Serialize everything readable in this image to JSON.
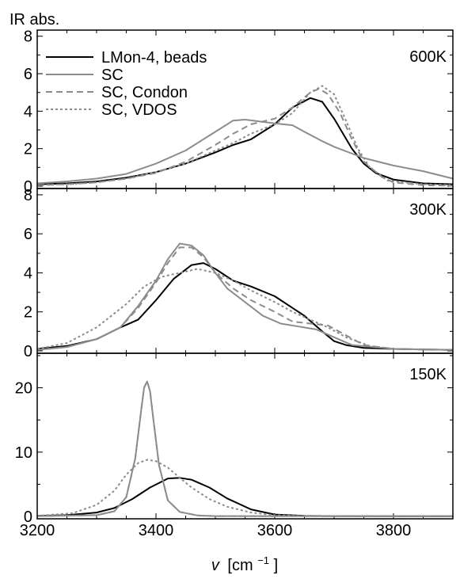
{
  "chart_data": {
    "type": "line",
    "ylabel": "IR abs.",
    "xlabel_var": "v",
    "xlabel_unit": "[cm",
    "xlabel_exp": "−1",
    "xlabel_close": "]",
    "xlim": [
      3200,
      3900
    ],
    "xticks": [
      3200,
      3400,
      3600,
      3800
    ],
    "legend": [
      {
        "name": "LMon-4, beads",
        "color": "#000000",
        "style": "solid"
      },
      {
        "name": "SC",
        "color": "#8c8c8c",
        "style": "solid"
      },
      {
        "name": "SC, Condon",
        "color": "#8c8c8c",
        "style": "dashed"
      },
      {
        "name": "SC, VDOS",
        "color": "#8c8c8c",
        "style": "dotted"
      }
    ],
    "panels": [
      {
        "label": "600K",
        "ylim": [
          0,
          8.2
        ],
        "yticks": [
          0,
          2,
          4,
          6,
          8
        ],
        "series": [
          {
            "x": [
              3200,
              3250,
              3300,
              3350,
              3400,
              3450,
              3500,
              3530,
              3560,
              3600,
              3630,
              3660,
              3680,
              3700,
              3730,
              3750,
              3770,
              3800,
              3850,
              3900
            ],
            "y": [
              0.1,
              0.15,
              0.25,
              0.45,
              0.75,
              1.2,
              1.8,
              2.2,
              2.5,
              3.3,
              4.2,
              4.7,
              4.5,
              3.6,
              2.0,
              1.2,
              0.7,
              0.35,
              0.15,
              0.1
            ]
          },
          {
            "x": [
              3200,
              3250,
              3300,
              3350,
              3400,
              3450,
              3500,
              3530,
              3550,
              3600,
              3630,
              3650,
              3680,
              3700,
              3750,
              3800,
              3850,
              3900
            ],
            "y": [
              0.15,
              0.25,
              0.4,
              0.65,
              1.2,
              1.9,
              2.9,
              3.5,
              3.55,
              3.35,
              3.25,
              2.9,
              2.4,
              2.1,
              1.5,
              1.1,
              0.8,
              0.4
            ]
          },
          {
            "x": [
              3200,
              3250,
              3300,
              3350,
              3400,
              3450,
              3500,
              3530,
              3560,
              3600,
              3630,
              3660,
              3675,
              3690,
              3710,
              3730,
              3750,
              3780,
              3800,
              3850,
              3900
            ],
            "y": [
              0.05,
              0.1,
              0.2,
              0.4,
              0.7,
              1.3,
              2.2,
              2.8,
              3.3,
              3.6,
              4.2,
              5.0,
              5.2,
              4.9,
              3.9,
              2.5,
              1.3,
              0.5,
              0.2,
              0.05,
              0.02
            ]
          },
          {
            "x": [
              3200,
              3250,
              3300,
              3350,
              3400,
              3450,
              3500,
              3530,
              3560,
              3600,
              3630,
              3660,
              3680,
              3700,
              3720,
              3740,
              3760,
              3790,
              3850,
              3900
            ],
            "y": [
              0.05,
              0.1,
              0.2,
              0.4,
              0.75,
              1.2,
              1.9,
              2.3,
              2.8,
              3.3,
              3.9,
              5.0,
              5.35,
              4.9,
              3.5,
              2.0,
              1.0,
              0.3,
              0.1,
              0.05
            ]
          }
        ]
      },
      {
        "label": "300K",
        "ylim": [
          0,
          8.2
        ],
        "yticks": [
          0,
          2,
          4,
          6,
          8
        ],
        "series": [
          {
            "x": [
              3200,
              3250,
              3300,
              3340,
              3370,
              3400,
              3430,
              3460,
              3480,
              3500,
              3530,
              3560,
              3600,
              3630,
              3650,
              3680,
              3700,
              3720,
              3750,
              3800,
              3900
            ],
            "y": [
              0.1,
              0.25,
              0.6,
              1.2,
              1.6,
              2.6,
              3.7,
              4.4,
              4.5,
              4.2,
              3.6,
              3.3,
              2.8,
              2.2,
              1.8,
              1.0,
              0.5,
              0.3,
              0.15,
              0.1,
              0.05
            ]
          },
          {
            "x": [
              3200,
              3250,
              3300,
              3340,
              3370,
              3400,
              3420,
              3440,
              3460,
              3480,
              3500,
              3520,
              3550,
              3580,
              3610,
              3640,
              3670,
              3700,
              3730,
              3800,
              3900
            ],
            "y": [
              0.05,
              0.2,
              0.6,
              1.2,
              2.3,
              3.6,
              4.7,
              5.5,
              5.4,
              4.9,
              4.0,
              3.2,
              2.5,
              1.8,
              1.4,
              1.25,
              1.1,
              0.7,
              0.3,
              0.1,
              0.05
            ]
          },
          {
            "x": [
              3200,
              3250,
              3300,
              3340,
              3370,
              3400,
              3420,
              3440,
              3460,
              3480,
              3500,
              3530,
              3560,
              3600,
              3630,
              3660,
              3690,
              3720,
              3750,
              3800,
              3900
            ],
            "y": [
              0.05,
              0.2,
              0.6,
              1.2,
              2.2,
              3.5,
              4.5,
              5.3,
              5.3,
              4.8,
              4.0,
              3.2,
              2.6,
              2.0,
              1.5,
              1.4,
              1.3,
              0.8,
              0.3,
              0.1,
              0.05
            ]
          },
          {
            "x": [
              3200,
              3250,
              3300,
              3350,
              3380,
              3410,
              3440,
              3470,
              3500,
              3530,
              3560,
              3600,
              3630,
              3660,
              3690,
              3720,
              3760,
              3800,
              3900
            ],
            "y": [
              0.1,
              0.4,
              1.2,
              2.4,
              3.3,
              3.8,
              4.0,
              4.2,
              4.0,
              3.6,
              3.1,
              2.5,
              2.0,
              1.6,
              1.2,
              0.7,
              0.25,
              0.1,
              0.05
            ]
          }
        ]
      },
      {
        "label": "150K",
        "ylim": [
          0,
          25
        ],
        "yticks": [
          0,
          10,
          20
        ],
        "series": [
          {
            "x": [
              3200,
              3250,
              3300,
              3330,
              3360,
              3390,
              3420,
              3440,
              3460,
              3490,
              3520,
              3560,
              3600,
              3650,
              3700,
              3900
            ],
            "y": [
              0.1,
              0.2,
              0.6,
              1.3,
              2.7,
              4.5,
              5.9,
              6.0,
              5.7,
              4.5,
              2.8,
              1.1,
              0.3,
              0.1,
              0.05,
              0.02
            ]
          },
          {
            "x": [
              3200,
              3300,
              3330,
              3350,
              3365,
              3375,
              3380,
              3385,
              3390,
              3395,
              3405,
              3420,
              3440,
              3470,
              3500,
              3900
            ],
            "y": [
              0.05,
              0.2,
              0.8,
              3.0,
              9.0,
              16.5,
              20.0,
              21.0,
              19.5,
              15.5,
              8.0,
              2.5,
              0.7,
              0.15,
              0.05,
              0.02
            ]
          },
          {
            "x": [
              3200,
              3300,
              3330,
              3350,
              3365,
              3375,
              3380,
              3385,
              3390,
              3395,
              3405,
              3420,
              3440,
              3470,
              3500,
              3900
            ],
            "y": [
              0.05,
              0.2,
              0.8,
              3.0,
              9.0,
              16.5,
              20.0,
              21.0,
              19.5,
              15.5,
              8.0,
              2.5,
              0.7,
              0.15,
              0.05,
              0.02
            ]
          },
          {
            "x": [
              3200,
              3260,
              3300,
              3330,
              3350,
              3370,
              3385,
              3400,
              3420,
              3440,
              3460,
              3490,
              3520,
              3560,
              3600,
              3650,
              3900
            ],
            "y": [
              0.1,
              0.5,
              1.8,
              4.0,
              6.5,
              8.3,
              8.8,
              8.6,
              7.6,
              6.0,
              4.5,
              2.7,
              1.5,
              0.6,
              0.2,
              0.05,
              0.02
            ]
          }
        ]
      }
    ]
  }
}
